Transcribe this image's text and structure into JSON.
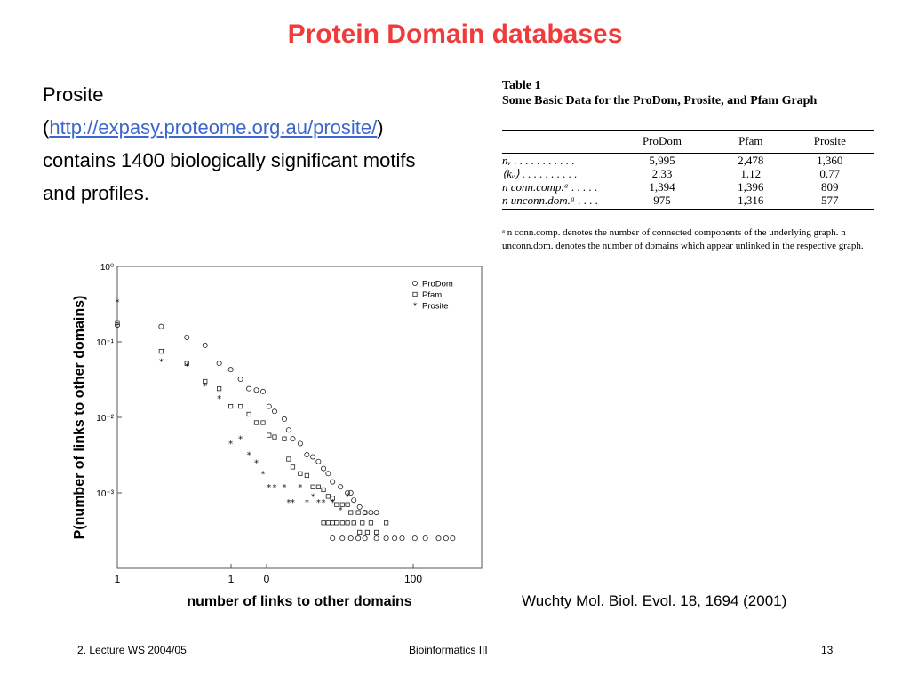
{
  "slide": {
    "title": "Protein Domain databases",
    "text_start": "Prosite",
    "paren_open": "(",
    "link": "http://expasy.proteome.org.au/prosite/",
    "text_end": ") contains 1400 biologically significant motifs and profiles.",
    "citation": "Wuchty  Mol. Biol. Evol. 18, 1694 (2001)",
    "footer": {
      "left": "2. Lecture WS 2004/05",
      "center": "Bioinformatics III",
      "right": "13"
    }
  },
  "table": {
    "caption_line1": "Table 1",
    "caption_line2": "Some Basic Data for the ProDom, Prosite, and Pfam Graph",
    "columns": [
      "",
      "ProDom",
      "Pfam",
      "Prosite"
    ],
    "rows": [
      {
        "label": "nᵥ . . . . . . . . . . .",
        "values": [
          "5,995",
          "2,478",
          "1,360"
        ]
      },
      {
        "label": "⟨kᵥ⟩ . . . . . . . . . .",
        "values": [
          "2.33",
          "1.12",
          "0.77"
        ]
      },
      {
        "label": "n conn.comp.ᵃ . . . . .",
        "values": [
          "1,394",
          "1,396",
          "809"
        ]
      },
      {
        "label": "n unconn.dom.ᵃ . . . .",
        "values": [
          "975",
          "1,316",
          "577"
        ]
      }
    ],
    "footnote": "ᵃ n conn.comp. denotes the number of connected components of the underlying graph. n unconn.dom. denotes the number of domains which appear unlinked in the respective graph."
  },
  "chart_data": {
    "type": "scatter",
    "xlabel": "number of links to other domains",
    "ylabel": "P(number of links to other domains)",
    "x_ticks": [
      "1",
      "1",
      "0",
      "100"
    ],
    "y_ticks": [
      "10⁰",
      "10⁻¹",
      "10⁻²",
      "10⁻³"
    ],
    "xlim_log10": [
      0,
      2.5
    ],
    "ylim_log10": [
      -4.0,
      0
    ],
    "legend_position": "top-right",
    "series": [
      {
        "name": "ProDom",
        "marker": "circle",
        "points": [
          [
            1,
            0.167
          ],
          [
            2,
            0.16
          ],
          [
            3,
            0.115
          ],
          [
            4,
            0.09
          ],
          [
            5,
            0.052
          ],
          [
            6,
            0.043
          ],
          [
            7,
            0.032
          ],
          [
            8,
            0.024
          ],
          [
            9,
            0.023
          ],
          [
            10,
            0.022
          ],
          [
            11,
            0.014
          ],
          [
            12,
            0.012
          ],
          [
            14,
            0.0095
          ],
          [
            15,
            0.0068
          ],
          [
            16,
            0.0052
          ],
          [
            18,
            0.0045
          ],
          [
            20,
            0.0032
          ],
          [
            22,
            0.003
          ],
          [
            24,
            0.0026
          ],
          [
            26,
            0.0021
          ],
          [
            28,
            0.0018
          ],
          [
            30,
            0.0014
          ],
          [
            34,
            0.0012
          ],
          [
            38,
            0.001
          ],
          [
            40,
            0.001
          ],
          [
            42,
            0.0008
          ],
          [
            46,
            0.00065
          ],
          [
            50,
            0.00055
          ],
          [
            55,
            0.00055
          ],
          [
            60,
            0.00055
          ],
          [
            30,
            0.00025
          ],
          [
            35,
            0.00025
          ],
          [
            40,
            0.00025
          ],
          [
            45,
            0.00025
          ],
          [
            50,
            0.00025
          ],
          [
            60,
            0.00025
          ],
          [
            70,
            0.00025
          ],
          [
            80,
            0.00025
          ],
          [
            90,
            0.00025
          ],
          [
            110,
            0.00025
          ],
          [
            130,
            0.00025
          ],
          [
            160,
            0.00025
          ],
          [
            180,
            0.00025
          ],
          [
            200,
            0.00025
          ]
        ]
      },
      {
        "name": "Pfam",
        "marker": "square",
        "points": [
          [
            1,
            0.18
          ],
          [
            2,
            0.075
          ],
          [
            3,
            0.052
          ],
          [
            4,
            0.03
          ],
          [
            5,
            0.024
          ],
          [
            6,
            0.014
          ],
          [
            7,
            0.014
          ],
          [
            8,
            0.011
          ],
          [
            9,
            0.0085
          ],
          [
            10,
            0.0085
          ],
          [
            11,
            0.0058
          ],
          [
            12,
            0.0055
          ],
          [
            14,
            0.0052
          ],
          [
            15,
            0.0028
          ],
          [
            16,
            0.0022
          ],
          [
            18,
            0.0018
          ],
          [
            20,
            0.0017
          ],
          [
            22,
            0.0012
          ],
          [
            24,
            0.0012
          ],
          [
            26,
            0.0011
          ],
          [
            28,
            0.0009
          ],
          [
            30,
            0.00085
          ],
          [
            32,
            0.0007
          ],
          [
            35,
            0.0007
          ],
          [
            38,
            0.0007
          ],
          [
            40,
            0.00055
          ],
          [
            45,
            0.00055
          ],
          [
            50,
            0.00055
          ],
          [
            26,
            0.0004
          ],
          [
            28,
            0.0004
          ],
          [
            30,
            0.0004
          ],
          [
            32,
            0.0004
          ],
          [
            35,
            0.0004
          ],
          [
            38,
            0.0004
          ],
          [
            42,
            0.0004
          ],
          [
            48,
            0.0004
          ],
          [
            55,
            0.0004
          ],
          [
            70,
            0.0004
          ],
          [
            46,
            0.0003
          ],
          [
            52,
            0.0003
          ],
          [
            60,
            0.0003
          ]
        ]
      },
      {
        "name": "Prosite",
        "marker": "star",
        "points": [
          [
            1,
            0.34
          ],
          [
            2,
            0.055
          ],
          [
            3,
            0.048
          ],
          [
            4,
            0.026
          ],
          [
            5,
            0.018
          ],
          [
            6,
            0.0045
          ],
          [
            7,
            0.0052
          ],
          [
            8,
            0.0032
          ],
          [
            9,
            0.0025
          ],
          [
            10,
            0.0018
          ],
          [
            11,
            0.0012
          ],
          [
            12,
            0.0012
          ],
          [
            14,
            0.0012
          ],
          [
            15,
            0.00075
          ],
          [
            16,
            0.00075
          ],
          [
            18,
            0.0012
          ],
          [
            20,
            0.00075
          ],
          [
            22,
            0.0009
          ],
          [
            24,
            0.00075
          ],
          [
            26,
            0.00075
          ],
          [
            30,
            0.00075
          ],
          [
            34,
            0.0006
          ],
          [
            38,
            0.0009
          ]
        ]
      }
    ]
  }
}
